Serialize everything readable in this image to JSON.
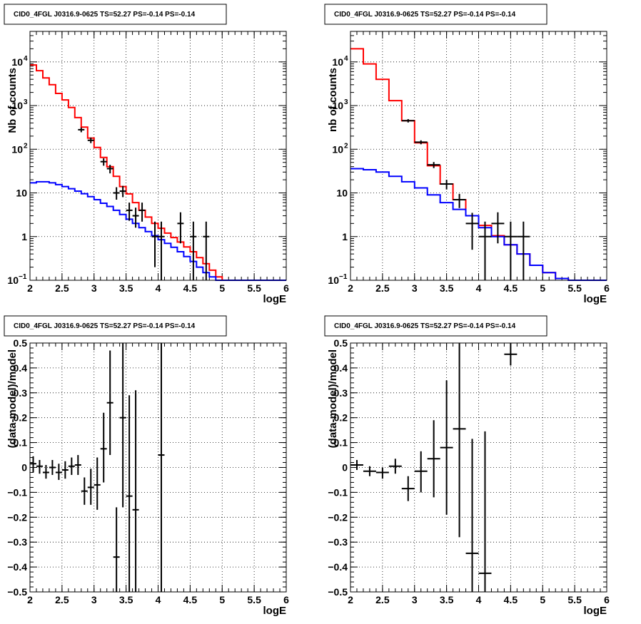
{
  "chart_data": [
    {
      "type": "line",
      "title": "CID0_4FGL J0316.9-0625 TS=52.27 PS=-0.14 PS=-0.14",
      "xlabel": "logE",
      "ylabel": "Nb of counts",
      "xlim": [
        2,
        6
      ],
      "ylim": [
        0.1,
        50000
      ],
      "ylog": true,
      "grid": true,
      "xticks": [
        "2",
        "2.5",
        "3",
        "3.5",
        "4",
        "4.5",
        "5",
        "5.5",
        "6"
      ],
      "yticks": [
        {
          "v": 0.1,
          "label": "10",
          "sup": "−1"
        },
        {
          "v": 1,
          "label": "1",
          "sup": ""
        },
        {
          "v": 10,
          "label": "10",
          "sup": ""
        },
        {
          "v": 100,
          "label": "10",
          "sup": "2"
        },
        {
          "v": 1000,
          "label": "10",
          "sup": "3"
        },
        {
          "v": 10000,
          "label": "10",
          "sup": "4"
        }
      ],
      "binwidth": 0.1,
      "series": [
        {
          "color": "#ff0000",
          "kind": "step",
          "x": [
            2.0,
            2.1,
            2.2,
            2.3,
            2.4,
            2.5,
            2.6,
            2.7,
            2.8,
            2.9,
            3.0,
            3.1,
            3.2,
            3.3,
            3.4,
            3.5,
            3.6,
            3.7,
            3.8,
            3.9,
            4.0,
            4.1,
            4.2,
            4.3,
            4.4,
            4.5,
            4.6,
            4.7,
            4.8,
            4.9,
            5.0,
            5.1,
            5.2,
            5.3,
            5.4,
            5.5,
            5.6,
            5.7,
            5.8,
            5.9
          ],
          "y": [
            8500,
            6300,
            4300,
            3000,
            1900,
            1350,
            900,
            530,
            320,
            180,
            110,
            65,
            40,
            24,
            14,
            9.5,
            6,
            4,
            2.8,
            2.0,
            1.55,
            1.2,
            0.95,
            0.75,
            0.58,
            0.45,
            0.33,
            0.24,
            0.17,
            0.12,
            0.1,
            0.1,
            0.1,
            0.1,
            0.1,
            0.1,
            0.1,
            0.1,
            0.1,
            0.1
          ]
        },
        {
          "color": "#0000ff",
          "kind": "step",
          "x": [
            2.0,
            2.1,
            2.2,
            2.3,
            2.4,
            2.5,
            2.6,
            2.7,
            2.8,
            2.9,
            3.0,
            3.1,
            3.2,
            3.3,
            3.4,
            3.5,
            3.6,
            3.7,
            3.8,
            3.9,
            4.0,
            4.1,
            4.2,
            4.3,
            4.4,
            4.5,
            4.6,
            4.7,
            4.8,
            4.9,
            5.0,
            5.1,
            5.2,
            5.3,
            5.4,
            5.5,
            5.6,
            5.7,
            5.8,
            5.9
          ],
          "y": [
            17,
            18,
            18,
            17,
            15.5,
            14,
            12.5,
            11,
            9.6,
            8.2,
            7,
            5.8,
            4.9,
            4.0,
            3.2,
            2.5,
            2.0,
            1.6,
            1.3,
            1.05,
            0.85,
            0.7,
            0.57,
            0.45,
            0.35,
            0.27,
            0.2,
            0.15,
            0.12,
            0.1,
            0.1,
            0.1,
            0.1,
            0.1,
            0.1,
            0.1,
            0.1,
            0.1,
            0.1,
            0.1
          ]
        },
        {
          "color": "#000000",
          "kind": "errorbar",
          "points": [
            {
              "x": 2.8,
              "y": 280,
              "lo": 245,
              "hi": 315
            },
            {
              "x": 2.95,
              "y": 160,
              "lo": 138,
              "hi": 185
            },
            {
              "x": 3.15,
              "y": 52,
              "lo": 42,
              "hi": 62
            },
            {
              "x": 3.25,
              "y": 36,
              "lo": 28,
              "hi": 44
            },
            {
              "x": 3.35,
              "y": 10,
              "lo": 7,
              "hi": 13.5
            },
            {
              "x": 3.45,
              "y": 11,
              "lo": 8,
              "hi": 14.5
            },
            {
              "x": 3.55,
              "y": 4,
              "lo": 2.3,
              "hi": 6
            },
            {
              "x": 3.65,
              "y": 3,
              "lo": 1.6,
              "hi": 4.6
            },
            {
              "x": 3.75,
              "y": 4,
              "lo": 2.2,
              "hi": 6
            },
            {
              "x": 3.95,
              "y": 1,
              "lo": 0.2,
              "hi": 2.2
            },
            {
              "x": 4.05,
              "y": 1,
              "lo": 0.1,
              "hi": 2.2
            },
            {
              "x": 4.35,
              "y": 2,
              "lo": 0.7,
              "hi": 3.6
            },
            {
              "x": 4.55,
              "y": 1,
              "lo": 0.1,
              "hi": 2.2
            },
            {
              "x": 4.75,
              "y": 1,
              "lo": 0.1,
              "hi": 2.2
            }
          ]
        }
      ]
    },
    {
      "type": "line",
      "title": "CID0_4FGL J0316.9-0625 TS=52.27 PS=-0.14 PS=-0.14",
      "xlabel": "logE",
      "ylabel": "nb of counts",
      "xlim": [
        2,
        6
      ],
      "ylim": [
        0.1,
        50000
      ],
      "ylog": true,
      "grid": true,
      "xticks": [
        "2",
        "2.5",
        "3",
        "3.5",
        "4",
        "4.5",
        "5",
        "5.5",
        "6"
      ],
      "yticks": [
        {
          "v": 0.1,
          "label": "10",
          "sup": "−1"
        },
        {
          "v": 1,
          "label": "1",
          "sup": ""
        },
        {
          "v": 10,
          "label": "10",
          "sup": ""
        },
        {
          "v": 100,
          "label": "10",
          "sup": "2"
        },
        {
          "v": 1000,
          "label": "10",
          "sup": "3"
        },
        {
          "v": 10000,
          "label": "10",
          "sup": "4"
        }
      ],
      "binwidth": 0.2,
      "series": [
        {
          "color": "#ff0000",
          "kind": "step",
          "x": [
            2.0,
            2.2,
            2.4,
            2.6,
            2.8,
            3.0,
            3.2,
            3.4,
            3.6,
            3.8,
            4.0,
            4.2,
            4.4,
            4.6,
            4.8,
            5.0,
            5.2,
            5.4,
            5.6,
            5.8
          ],
          "y": [
            20000,
            9000,
            4000,
            1300,
            450,
            140,
            42,
            16,
            7,
            3,
            1.8,
            1.05,
            0.65,
            0.4,
            0.22,
            0.15,
            0.11,
            0.1,
            0.1,
            0.1
          ]
        },
        {
          "color": "#0000ff",
          "kind": "step",
          "x": [
            2.0,
            2.2,
            2.4,
            2.6,
            2.8,
            3.0,
            3.2,
            3.4,
            3.6,
            3.8,
            4.0,
            4.2,
            4.4,
            4.6,
            4.8,
            5.0,
            5.2,
            5.4,
            5.6,
            5.8
          ],
          "y": [
            36,
            34,
            30,
            24,
            18,
            13,
            9,
            6,
            4.2,
            3.0,
            1.6,
            1.0,
            0.65,
            0.4,
            0.22,
            0.15,
            0.11,
            0.1,
            0.1,
            0.1
          ]
        },
        {
          "color": "#000000",
          "kind": "errorbar",
          "points": [
            {
              "x": 2.9,
              "y": 450,
              "lo": 410,
              "hi": 490
            },
            {
              "x": 3.1,
              "y": 145,
              "lo": 130,
              "hi": 160
            },
            {
              "x": 3.3,
              "y": 44,
              "lo": 37,
              "hi": 51
            },
            {
              "x": 3.5,
              "y": 16,
              "lo": 12,
              "hi": 20
            },
            {
              "x": 3.7,
              "y": 7,
              "lo": 4.5,
              "hi": 9.5
            },
            {
              "x": 3.9,
              "y": 2,
              "lo": 0.5,
              "hi": 3.5
            },
            {
              "x": 4.1,
              "y": 1,
              "lo": 0.1,
              "hi": 2.2
            },
            {
              "x": 4.3,
              "y": 2,
              "lo": 0.7,
              "hi": 3.6
            },
            {
              "x": 4.5,
              "y": 1,
              "lo": 0.1,
              "hi": 2.2
            },
            {
              "x": 4.7,
              "y": 1,
              "lo": 0.1,
              "hi": 2.2
            }
          ]
        }
      ]
    },
    {
      "type": "scatter",
      "title": "CID0_4FGL J0316.9-0625 TS=52.27 PS=-0.14 PS=-0.14",
      "xlabel": "logE",
      "ylabel": "(data-model)/model",
      "xlim": [
        2,
        6
      ],
      "ylim": [
        -0.5,
        0.5
      ],
      "ylog": false,
      "grid": true,
      "xticks": [
        "2",
        "2.5",
        "3",
        "3.5",
        "4",
        "4.5",
        "5",
        "5.5",
        "6"
      ],
      "yticks": [
        {
          "v": -0.5,
          "label": "−0.5"
        },
        {
          "v": -0.4,
          "label": "−0.4"
        },
        {
          "v": -0.3,
          "label": "−0.3"
        },
        {
          "v": -0.2,
          "label": "−0.2"
        },
        {
          "v": -0.1,
          "label": "−0.1"
        },
        {
          "v": 0,
          "label": "0"
        },
        {
          "v": 0.1,
          "label": "0.1"
        },
        {
          "v": 0.2,
          "label": "0.2"
        },
        {
          "v": 0.3,
          "label": "0.3"
        },
        {
          "v": 0.4,
          "label": "0.4"
        },
        {
          "v": 0.5,
          "label": "0.5"
        }
      ],
      "binwidth": 0.1,
      "series": [
        {
          "color": "#000000",
          "kind": "errorbar",
          "points": [
            {
              "x": 2.05,
              "y": 0.015,
              "lo": -0.02,
              "hi": 0.045
            },
            {
              "x": 2.15,
              "y": 0.005,
              "lo": -0.025,
              "hi": 0.03
            },
            {
              "x": 2.25,
              "y": -0.02,
              "lo": -0.045,
              "hi": 0.01
            },
            {
              "x": 2.35,
              "y": 0.0,
              "lo": -0.03,
              "hi": 0.03
            },
            {
              "x": 2.45,
              "y": -0.02,
              "lo": -0.05,
              "hi": 0.015
            },
            {
              "x": 2.55,
              "y": -0.01,
              "lo": -0.045,
              "hi": 0.025
            },
            {
              "x": 2.65,
              "y": 0.005,
              "lo": -0.03,
              "hi": 0.04
            },
            {
              "x": 2.75,
              "y": 0.01,
              "lo": -0.03,
              "hi": 0.05
            },
            {
              "x": 2.85,
              "y": -0.095,
              "lo": -0.15,
              "hi": -0.04
            },
            {
              "x": 2.95,
              "y": -0.08,
              "lo": -0.15,
              "hi": -0.005
            },
            {
              "x": 3.05,
              "y": -0.07,
              "lo": -0.17,
              "hi": 0.04
            },
            {
              "x": 3.15,
              "y": 0.075,
              "lo": -0.06,
              "hi": 0.22
            },
            {
              "x": 3.25,
              "y": 0.26,
              "lo": 0.05,
              "hi": 0.47
            },
            {
              "x": 3.35,
              "y": -0.36,
              "lo": -0.5,
              "hi": -0.16
            },
            {
              "x": 3.45,
              "y": 0.2,
              "lo": -0.16,
              "hi": 0.5
            },
            {
              "x": 3.55,
              "y": -0.115,
              "lo": -0.5,
              "hi": 0.29
            },
            {
              "x": 3.65,
              "y": -0.17,
              "lo": -0.5,
              "hi": 0.31
            },
            {
              "x": 4.05,
              "y": 0.05,
              "lo": -0.5,
              "hi": 0.5
            }
          ]
        }
      ]
    },
    {
      "type": "scatter",
      "title": "CID0_4FGL J0316.9-0625 TS=52.27 PS=-0.14 PS=-0.14",
      "xlabel": "logE",
      "ylabel": "(data-model)/model",
      "xlim": [
        2,
        6
      ],
      "ylim": [
        -0.5,
        0.5
      ],
      "ylog": false,
      "grid": true,
      "xticks": [
        "2",
        "2.5",
        "3",
        "3.5",
        "4",
        "4.5",
        "5",
        "5.5",
        "6"
      ],
      "yticks": [
        {
          "v": -0.5,
          "label": "−0.5"
        },
        {
          "v": -0.4,
          "label": "−0.4"
        },
        {
          "v": -0.3,
          "label": "−0.3"
        },
        {
          "v": -0.2,
          "label": "−0.2"
        },
        {
          "v": -0.1,
          "label": "−0.1"
        },
        {
          "v": 0,
          "label": "0"
        },
        {
          "v": 0.1,
          "label": "0.1"
        },
        {
          "v": 0.2,
          "label": "0.2"
        },
        {
          "v": 0.3,
          "label": "0.3"
        },
        {
          "v": 0.4,
          "label": "0.4"
        },
        {
          "v": 0.5,
          "label": "0.5"
        }
      ],
      "binwidth": 0.2,
      "series": [
        {
          "color": "#000000",
          "kind": "errorbar",
          "points": [
            {
              "x": 2.1,
              "y": 0.01,
              "lo": -0.01,
              "hi": 0.03
            },
            {
              "x": 2.3,
              "y": -0.015,
              "lo": -0.035,
              "hi": 0.005
            },
            {
              "x": 2.5,
              "y": -0.02,
              "lo": -0.045,
              "hi": 0.0
            },
            {
              "x": 2.7,
              "y": 0.005,
              "lo": -0.025,
              "hi": 0.035
            },
            {
              "x": 2.9,
              "y": -0.085,
              "lo": -0.135,
              "hi": -0.035
            },
            {
              "x": 3.1,
              "y": -0.015,
              "lo": -0.1,
              "hi": 0.065
            },
            {
              "x": 3.3,
              "y": 0.035,
              "lo": -0.12,
              "hi": 0.19
            },
            {
              "x": 3.5,
              "y": 0.08,
              "lo": -0.19,
              "hi": 0.35
            },
            {
              "x": 3.7,
              "y": 0.155,
              "lo": -0.28,
              "hi": 0.5
            },
            {
              "x": 3.9,
              "y": -0.345,
              "lo": -0.5,
              "hi": 0.115
            },
            {
              "x": 4.1,
              "y": -0.425,
              "lo": -0.5,
              "hi": 0.145
            },
            {
              "x": 4.5,
              "y": 0.455,
              "lo": 0.41,
              "hi": 0.5
            }
          ]
        }
      ]
    }
  ]
}
